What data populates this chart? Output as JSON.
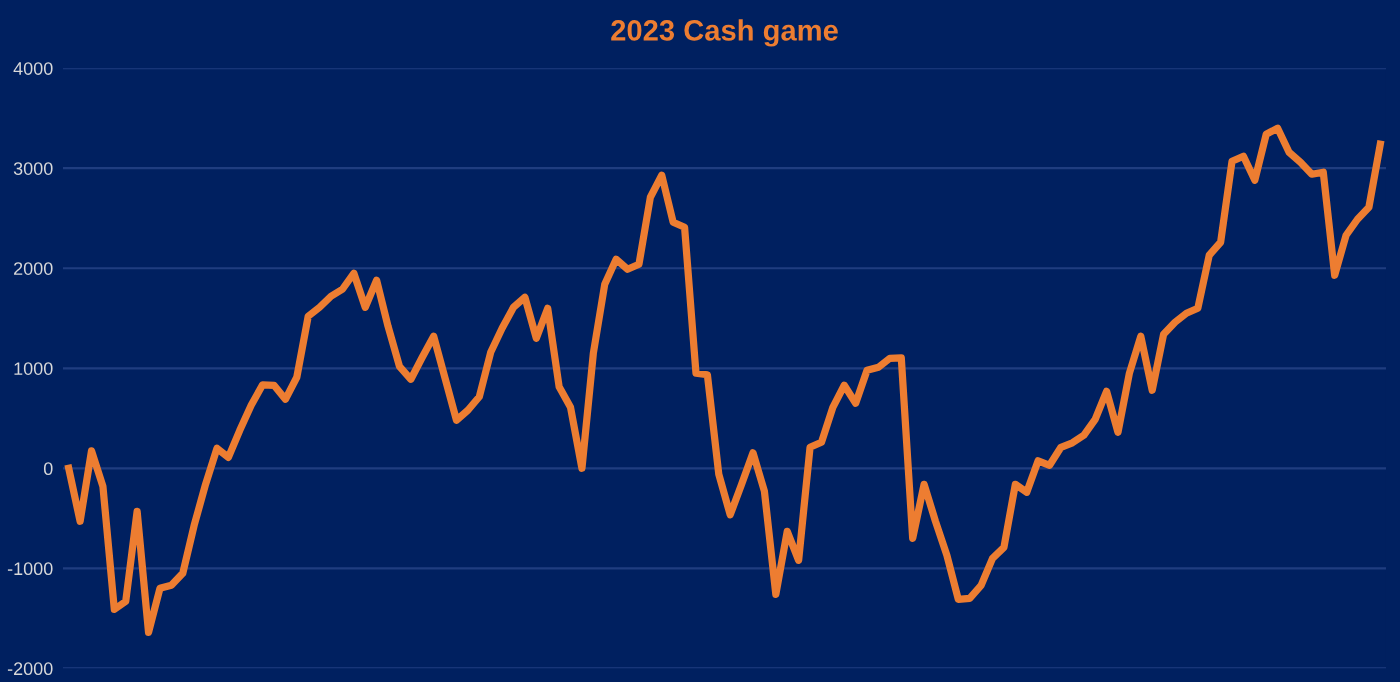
{
  "chart_data": {
    "type": "line",
    "title": "2023 Cash game",
    "categories": [
      null,
      null,
      null,
      null,
      null,
      null,
      null,
      null,
      null,
      null,
      null,
      null,
      null,
      null,
      null,
      null,
      null,
      null,
      null,
      null,
      null,
      null,
      null,
      null,
      null,
      null,
      null,
      null,
      null,
      null,
      null,
      null,
      null,
      null,
      null,
      null,
      null,
      null,
      null,
      null,
      null,
      null,
      null,
      null,
      null,
      null,
      null,
      null,
      null,
      null,
      null,
      null,
      null,
      null,
      null,
      null,
      null,
      null,
      null,
      null,
      null,
      null,
      null,
      null,
      null,
      null,
      null,
      null,
      null,
      null,
      null,
      null,
      null,
      null,
      null,
      null,
      null,
      null,
      null,
      null,
      null,
      null,
      null,
      null,
      null,
      null,
      null,
      null,
      null,
      null,
      null,
      null,
      null,
      null,
      null,
      null,
      null,
      null,
      null,
      null,
      null,
      null,
      null,
      null,
      null,
      null,
      null,
      null,
      null,
      null,
      null,
      null,
      null,
      null,
      null,
      null
    ],
    "series": [
      {
        "color": "#ed7d31",
        "values": [
          0,
          -530,
          175,
          -180,
          -1410,
          -1330,
          -430,
          -1640,
          -1200,
          -1170,
          -1050,
          -570,
          -160,
          200,
          110,
          380,
          630,
          835,
          830,
          690,
          910,
          1520,
          1610,
          1720,
          1790,
          1950,
          1610,
          1880,
          1420,
          1020,
          890,
          1110,
          1320,
          900,
          480,
          580,
          715,
          1160,
          1400,
          1610,
          1710,
          1300,
          1600,
          815,
          610,
          0,
          1150,
          1840,
          2090,
          1990,
          2040,
          2710,
          2930,
          2460,
          2410,
          950,
          935,
          -60,
          -465,
          -160,
          155,
          -230,
          -1260,
          -630,
          -920,
          210,
          260,
          610,
          830,
          650,
          980,
          1010,
          1100,
          1105,
          -700,
          -160,
          -530,
          -870,
          -1310,
          -1300,
          -1170,
          -900,
          -790,
          -160,
          -240,
          75,
          30,
          210,
          255,
          330,
          490,
          770,
          360,
          950,
          1320,
          780,
          1340,
          1460,
          1550,
          1600,
          2130,
          2260,
          3070,
          3120,
          2880,
          3340,
          3400,
          3160,
          3060,
          2940,
          2960,
          1930,
          2330,
          2490,
          2610,
          3240
        ]
      }
    ],
    "ylim": [
      -2000,
      4000
    ],
    "yticks": [
      -2000,
      -1000,
      0,
      1000,
      2000,
      3000,
      4000
    ],
    "grid": "y",
    "tick_labels": "y",
    "marker": "none",
    "line_style": "solid"
  }
}
